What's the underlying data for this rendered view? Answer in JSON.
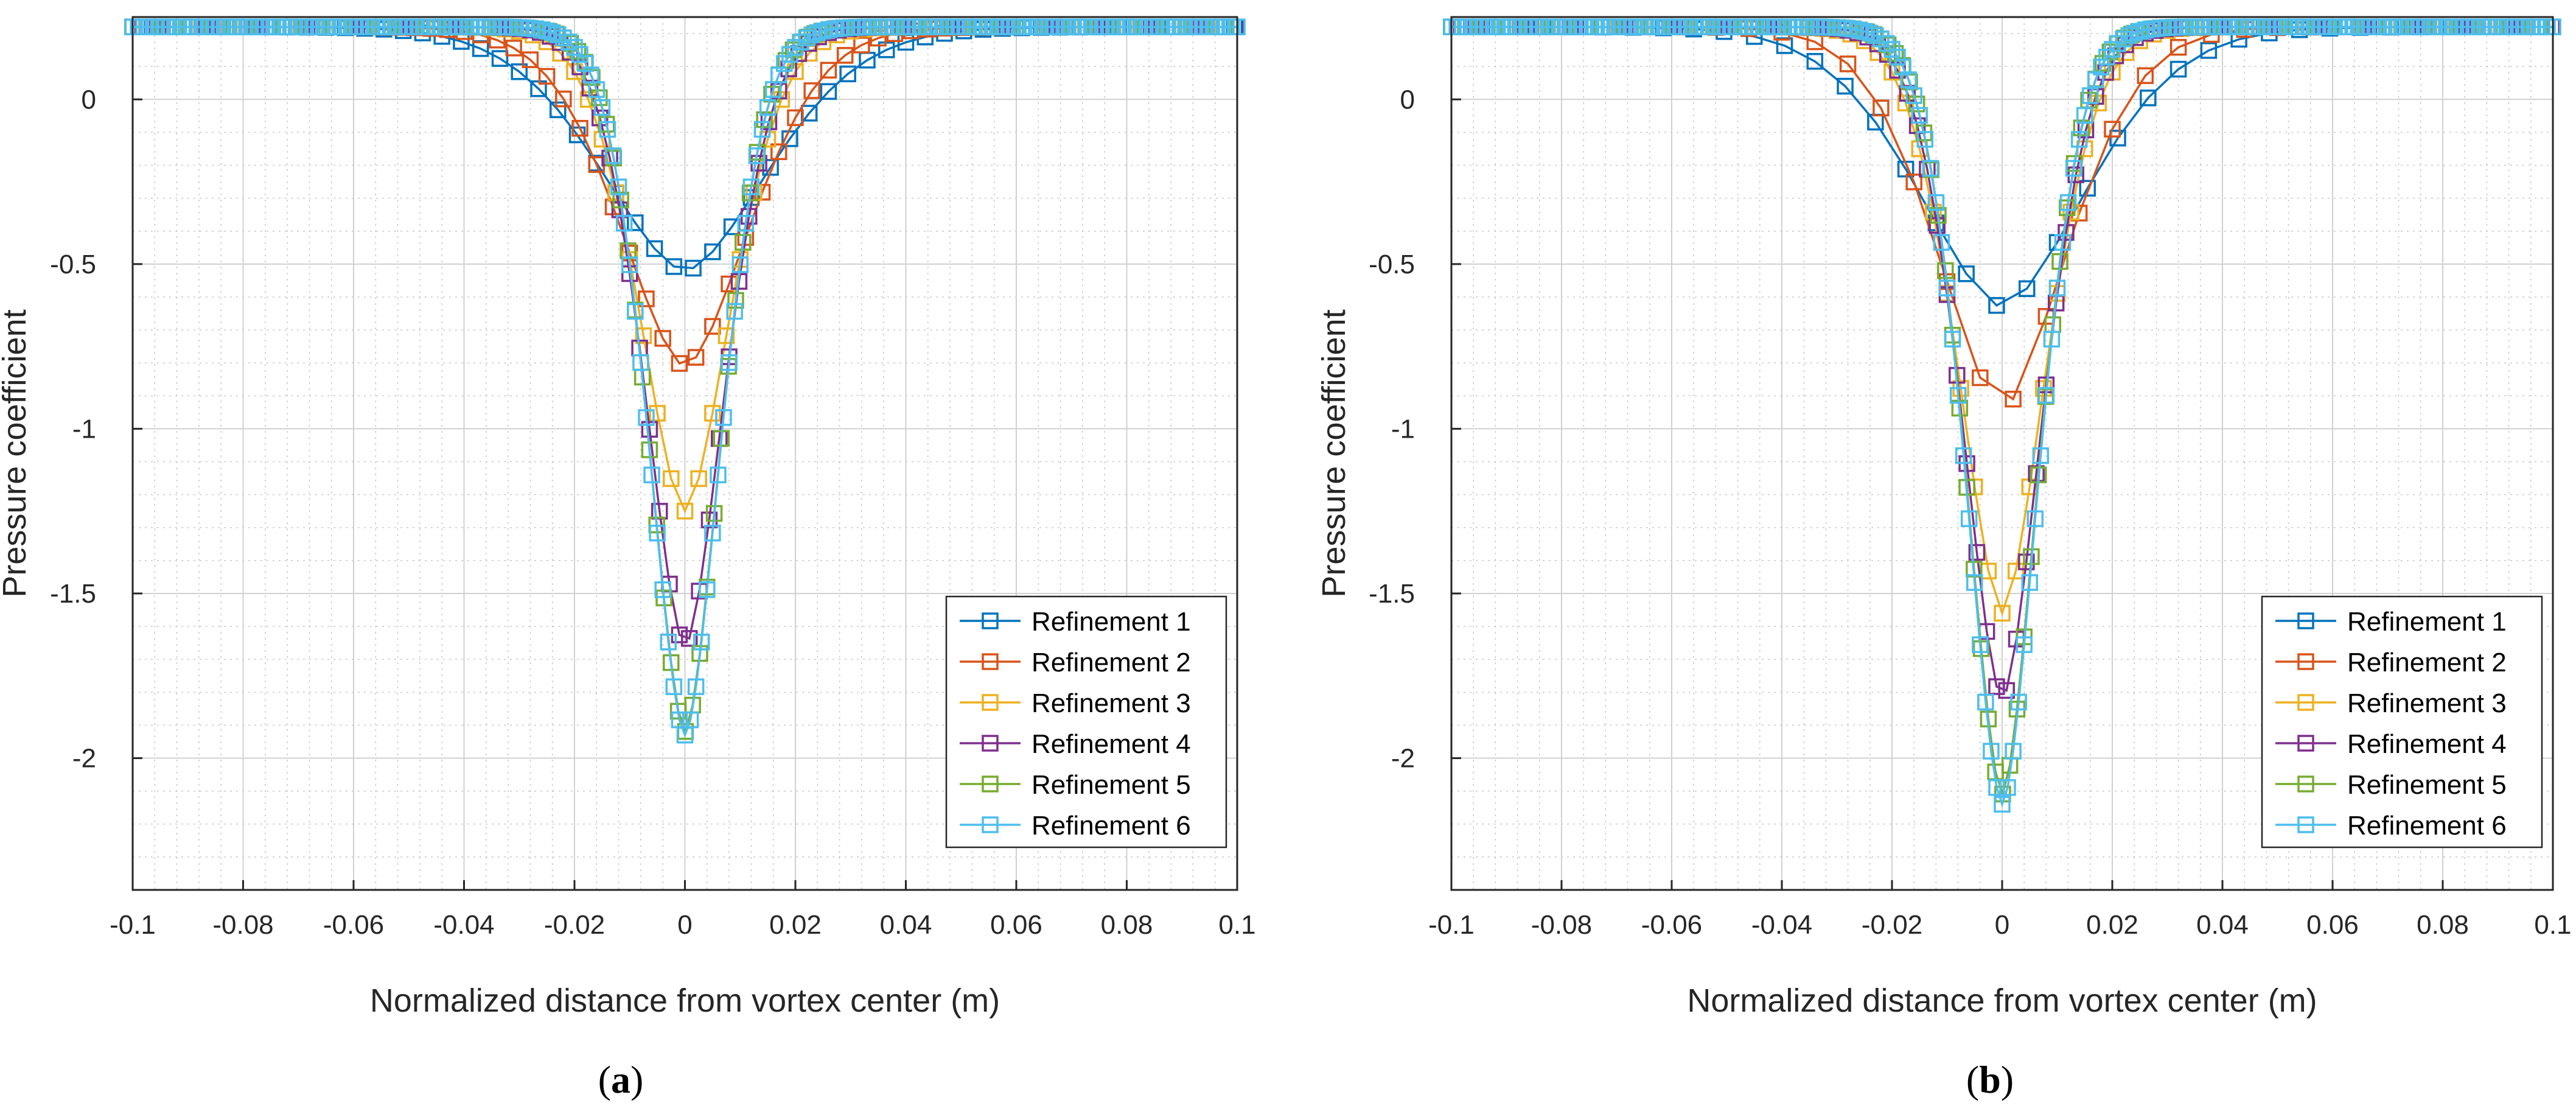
{
  "figure": {
    "panels": [
      {
        "caption_open": "(",
        "caption_letter": "a",
        "caption_close": ")"
      },
      {
        "caption_open": "(",
        "caption_letter": "b",
        "caption_close": ")"
      }
    ]
  },
  "chart_data": [
    {
      "type": "line",
      "panel": "a",
      "xlabel": "Normalized distance from vortex center (m)",
      "ylabel": "Pressure coefficient",
      "xlim": [
        -0.1,
        0.1
      ],
      "ylim": [
        -2.4,
        0.25
      ],
      "xticks": [
        -0.1,
        -0.08,
        -0.06,
        -0.04,
        -0.02,
        0,
        0.02,
        0.04,
        0.06,
        0.08,
        0.1
      ],
      "xtick_labels": [
        "-0.1",
        "-0.08",
        "-0.06",
        "-0.04",
        "-0.02",
        "0",
        "0.02",
        "0.04",
        "0.06",
        "0.08",
        "0.1"
      ],
      "yticks": [
        -2,
        -1.5,
        -1,
        -0.5,
        0
      ],
      "ytick_labels": [
        "-2",
        "-1.5",
        "-1",
        "-0.5",
        "0"
      ],
      "grid": true,
      "minor_grid": true,
      "legend_position": "bottom-right",
      "series": [
        {
          "name": "Refinement 1",
          "color": "#0072BD",
          "min": -0.52,
          "width": 0.022,
          "x_spacing": 0.0035
        },
        {
          "name": "Refinement 2",
          "color": "#D95319",
          "min": -0.81,
          "width": 0.017,
          "x_spacing": 0.003
        },
        {
          "name": "Refinement 3",
          "color": "#EDB120",
          "min": -1.25,
          "width": 0.012,
          "x_spacing": 0.0025
        },
        {
          "name": "Refinement 4",
          "color": "#7E2F8E",
          "min": -1.66,
          "width": 0.0105,
          "x_spacing": 0.0018
        },
        {
          "name": "Refinement 5",
          "color": "#77AC30",
          "min": -1.92,
          "width": 0.0095,
          "x_spacing": 0.0013
        },
        {
          "name": "Refinement 6",
          "color": "#4DBEEE",
          "min": -1.93,
          "width": 0.0095,
          "x_spacing": 0.001
        }
      ]
    },
    {
      "type": "line",
      "panel": "b",
      "xlabel": "Normalized distance from vortex center (m)",
      "ylabel": "Pressure coefficient",
      "xlim": [
        -0.1,
        0.1
      ],
      "ylim": [
        -2.4,
        0.25
      ],
      "xticks": [
        -0.1,
        -0.08,
        -0.06,
        -0.04,
        -0.02,
        0,
        0.02,
        0.04,
        0.06,
        0.08,
        0.1
      ],
      "xtick_labels": [
        "-0.1",
        "-0.08",
        "-0.06",
        "-0.04",
        "-0.02",
        "0",
        "0.02",
        "0.04",
        "0.06",
        "0.08",
        "0.1"
      ],
      "yticks": [
        -2,
        -1.5,
        -1,
        -0.5,
        0
      ],
      "ytick_labels": [
        "-2",
        "-1.5",
        "-1",
        "-0.5",
        "0"
      ],
      "grid": true,
      "minor_grid": true,
      "legend_position": "bottom-right",
      "series": [
        {
          "name": "Refinement 1",
          "color": "#0072BD",
          "min": -0.63,
          "width": 0.022,
          "x_spacing": 0.0055
        },
        {
          "name": "Refinement 2",
          "color": "#D95319",
          "min": -0.94,
          "width": 0.017,
          "x_spacing": 0.006
        },
        {
          "name": "Refinement 3",
          "color": "#EDB120",
          "min": -1.56,
          "width": 0.0115,
          "x_spacing": 0.0025
        },
        {
          "name": "Refinement 4",
          "color": "#7E2F8E",
          "min": -1.82,
          "width": 0.0105,
          "x_spacing": 0.0018
        },
        {
          "name": "Refinement 5",
          "color": "#77AC30",
          "min": -2.11,
          "width": 0.0095,
          "x_spacing": 0.0013
        },
        {
          "name": "Refinement 6",
          "color": "#4DBEEE",
          "min": -2.14,
          "width": 0.0095,
          "x_spacing": 0.001
        }
      ]
    }
  ]
}
